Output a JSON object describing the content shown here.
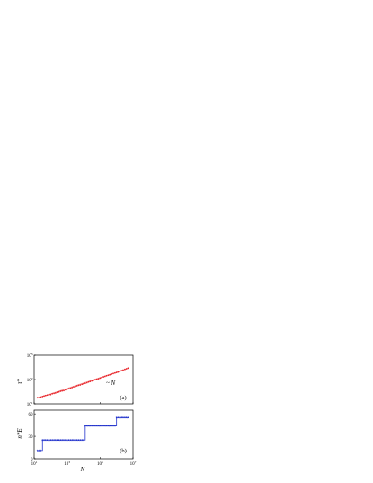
{
  "chart_data": [
    {
      "type": "scatter",
      "panel_label": "(a)",
      "ylabel": "τ*",
      "xlabel": "",
      "xscale": "log",
      "yscale": "log",
      "xlim": [
        10,
        10000000
      ],
      "ylim": [
        10,
        1000
      ],
      "x_ticks": [
        {
          "value": 10,
          "base": "10",
          "exp": "1"
        },
        {
          "value": 1000,
          "base": "10",
          "exp": "3"
        },
        {
          "value": 100000,
          "base": "10",
          "exp": "5"
        },
        {
          "value": 10000000,
          "base": "10",
          "exp": "7"
        }
      ],
      "y_ticks": [
        {
          "value": 10,
          "base": "10",
          "exp": "1"
        },
        {
          "value": 100,
          "base": "10",
          "exp": "2"
        },
        {
          "value": 1000,
          "base": "10",
          "exp": "3"
        }
      ],
      "annotation": "~ N",
      "marker_color": "#e8262c",
      "line_color": "#f4a6a6",
      "series": [
        {
          "marker": "circle",
          "x": [
            16,
            20,
            25,
            32,
            40,
            50,
            63,
            80,
            100,
            126,
            160,
            200,
            250,
            320,
            400,
            500,
            630,
            800,
            1000,
            1260,
            1600,
            2000,
            2500,
            3200,
            4000,
            5000,
            6300,
            8000,
            10000,
            12600,
            16000,
            20000,
            25000,
            32000,
            40000,
            50000,
            63000,
            80000,
            100000,
            126000,
            160000,
            200000,
            250000,
            320000,
            400000,
            500000,
            630000,
            800000,
            1000000,
            1260000,
            1600000,
            2000000,
            2500000,
            3200000,
            4000000,
            5000000
          ],
          "y": [
            18,
            18,
            19,
            20,
            21,
            22,
            23,
            24,
            24,
            26,
            27,
            28,
            30,
            31,
            33,
            34,
            35,
            38,
            40,
            42,
            44,
            47,
            50,
            52,
            55,
            58,
            60,
            64,
            67,
            70,
            74,
            79,
            83,
            88,
            93,
            98,
            103,
            108,
            115,
            120,
            128,
            135,
            143,
            150,
            158,
            167,
            176,
            186,
            195,
            205,
            218,
            232,
            245,
            262,
            278,
            295
          ]
        },
        {
          "marker": "line",
          "x": [
            15,
            6000000
          ],
          "y": [
            17,
            300
          ]
        }
      ]
    },
    {
      "type": "line",
      "panel_label": "(b)",
      "ylabel": "n*E",
      "xlabel": "N",
      "xscale": "log",
      "xlim": [
        10,
        10000000
      ],
      "ylim": [
        0,
        65
      ],
      "x_ticks": [
        {
          "value": 10,
          "base": "10",
          "exp": "1"
        },
        {
          "value": 1000,
          "base": "10",
          "exp": "3"
        },
        {
          "value": 100000,
          "base": "10",
          "exp": "5"
        },
        {
          "value": 10000000,
          "base": "10",
          "exp": "7"
        }
      ],
      "y_ticks": [
        {
          "value": 0,
          "label": "0"
        },
        {
          "value": 30,
          "label": "30"
        },
        {
          "value": 60,
          "label": "60"
        }
      ],
      "color": "#2233cc",
      "series": [
        {
          "marker": "star",
          "x": [
            16,
            20,
            25,
            32,
            40,
            50,
            63,
            80,
            100,
            126,
            160,
            200,
            250,
            320,
            400,
            500,
            630,
            800,
            1000,
            1260,
            1600,
            2000,
            2500,
            3200,
            4000,
            5000,
            6300,
            8000,
            10000,
            12600,
            16000,
            20000,
            25000,
            32000,
            40000,
            50000,
            63000,
            80000,
            100000,
            126000,
            160000,
            200000,
            250000,
            320000,
            400000,
            500000,
            630000,
            800000,
            1000000,
            1260000,
            1600000,
            2000000,
            2500000,
            3200000,
            4000000,
            5000000
          ],
          "y": [
            11,
            11,
            11,
            25,
            25,
            25,
            25,
            25,
            25,
            25,
            25,
            25,
            25,
            25,
            25,
            25,
            25,
            25,
            25,
            25,
            25,
            25,
            25,
            25,
            25,
            25,
            25,
            25,
            25,
            44,
            44,
            44,
            44,
            44,
            44,
            44,
            44,
            44,
            44,
            44,
            44,
            44,
            44,
            44,
            44,
            44,
            44,
            44,
            55,
            55,
            55,
            55,
            55,
            55,
            55,
            55
          ]
        }
      ]
    }
  ]
}
